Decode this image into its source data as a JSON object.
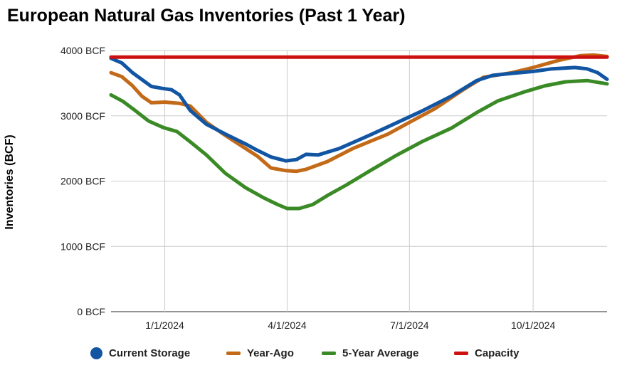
{
  "chart_data": {
    "type": "line",
    "title": "European Natural Gas Inventories (Past 1 Year)",
    "ylabel": "Inventories (BCF)",
    "xlabel": "",
    "ylim": [
      0,
      4000
    ],
    "y_ticks": [
      "0 BCF",
      "1000 BCF",
      "2000 BCF",
      "3000 BCF",
      "4000 BCF"
    ],
    "x_ticks": [
      "1/1/2024",
      "4/1/2024",
      "7/1/2024",
      "10/1/2024"
    ],
    "x_range": [
      "2023-11-22",
      "2024-11-25"
    ],
    "grid": true,
    "legend_position": "bottom",
    "series": [
      {
        "name": "Current Storage",
        "color": "#1155a3",
        "legend_marker": "circle",
        "points": [
          [
            "2023-11-22",
            3880
          ],
          [
            "2023-11-30",
            3810
          ],
          [
            "2023-12-08",
            3660
          ],
          [
            "2023-12-16",
            3540
          ],
          [
            "2023-12-22",
            3450
          ],
          [
            "2023-12-30",
            3420
          ],
          [
            "2024-01-06",
            3400
          ],
          [
            "2024-01-12",
            3320
          ],
          [
            "2024-01-20",
            3080
          ],
          [
            "2024-02-01",
            2870
          ],
          [
            "2024-02-15",
            2720
          ],
          [
            "2024-03-01",
            2570
          ],
          [
            "2024-03-10",
            2470
          ],
          [
            "2024-03-20",
            2370
          ],
          [
            "2024-03-31",
            2310
          ],
          [
            "2024-04-08",
            2330
          ],
          [
            "2024-04-15",
            2410
          ],
          [
            "2024-04-24",
            2400
          ],
          [
            "2024-05-10",
            2500
          ],
          [
            "2024-06-01",
            2700
          ],
          [
            "2024-06-20",
            2880
          ],
          [
            "2024-07-10",
            3070
          ],
          [
            "2024-08-01",
            3300
          ],
          [
            "2024-08-20",
            3540
          ],
          [
            "2024-09-01",
            3620
          ],
          [
            "2024-09-15",
            3650
          ],
          [
            "2024-10-01",
            3680
          ],
          [
            "2024-10-15",
            3720
          ],
          [
            "2024-11-01",
            3740
          ],
          [
            "2024-11-10",
            3720
          ],
          [
            "2024-11-18",
            3660
          ],
          [
            "2024-11-25",
            3560
          ]
        ]
      },
      {
        "name": "Year-Ago",
        "color": "#c26a18",
        "legend_marker": "line",
        "points": [
          [
            "2023-11-22",
            3660
          ],
          [
            "2023-11-30",
            3600
          ],
          [
            "2023-12-08",
            3460
          ],
          [
            "2023-12-15",
            3300
          ],
          [
            "2023-12-22",
            3200
          ],
          [
            "2024-01-01",
            3210
          ],
          [
            "2024-01-12",
            3190
          ],
          [
            "2024-01-20",
            3150
          ],
          [
            "2024-02-01",
            2900
          ],
          [
            "2024-02-15",
            2700
          ],
          [
            "2024-03-01",
            2500
          ],
          [
            "2024-03-10",
            2380
          ],
          [
            "2024-03-20",
            2200
          ],
          [
            "2024-03-31",
            2160
          ],
          [
            "2024-04-08",
            2150
          ],
          [
            "2024-04-15",
            2180
          ],
          [
            "2024-05-01",
            2300
          ],
          [
            "2024-05-20",
            2500
          ],
          [
            "2024-06-15",
            2720
          ],
          [
            "2024-07-01",
            2900
          ],
          [
            "2024-07-20",
            3110
          ],
          [
            "2024-08-10",
            3400
          ],
          [
            "2024-08-25",
            3590
          ],
          [
            "2024-09-15",
            3660
          ],
          [
            "2024-10-01",
            3740
          ],
          [
            "2024-10-20",
            3850
          ],
          [
            "2024-11-05",
            3920
          ],
          [
            "2024-11-15",
            3930
          ],
          [
            "2024-11-25",
            3910
          ]
        ]
      },
      {
        "name": "5-Year Average",
        "color": "#3a8a26",
        "legend_marker": "line",
        "points": [
          [
            "2023-11-22",
            3320
          ],
          [
            "2023-12-01",
            3220
          ],
          [
            "2023-12-10",
            3080
          ],
          [
            "2023-12-20",
            2920
          ],
          [
            "2023-12-31",
            2820
          ],
          [
            "2024-01-10",
            2760
          ],
          [
            "2024-01-20",
            2600
          ],
          [
            "2024-02-01",
            2400
          ],
          [
            "2024-02-15",
            2120
          ],
          [
            "2024-03-01",
            1900
          ],
          [
            "2024-03-15",
            1740
          ],
          [
            "2024-03-25",
            1640
          ],
          [
            "2024-04-01",
            1580
          ],
          [
            "2024-04-10",
            1580
          ],
          [
            "2024-04-20",
            1640
          ],
          [
            "2024-05-01",
            1780
          ],
          [
            "2024-05-15",
            1940
          ],
          [
            "2024-06-01",
            2150
          ],
          [
            "2024-06-20",
            2380
          ],
          [
            "2024-07-10",
            2600
          ],
          [
            "2024-08-01",
            2810
          ],
          [
            "2024-08-20",
            3050
          ],
          [
            "2024-09-05",
            3230
          ],
          [
            "2024-09-25",
            3370
          ],
          [
            "2024-10-10",
            3460
          ],
          [
            "2024-10-25",
            3520
          ],
          [
            "2024-11-10",
            3540
          ],
          [
            "2024-11-25",
            3490
          ]
        ]
      },
      {
        "name": "Capacity",
        "color": "#cc1111",
        "legend_marker": "line",
        "points": [
          [
            "2023-11-22",
            3900
          ],
          [
            "2024-11-25",
            3900
          ]
        ]
      }
    ]
  }
}
